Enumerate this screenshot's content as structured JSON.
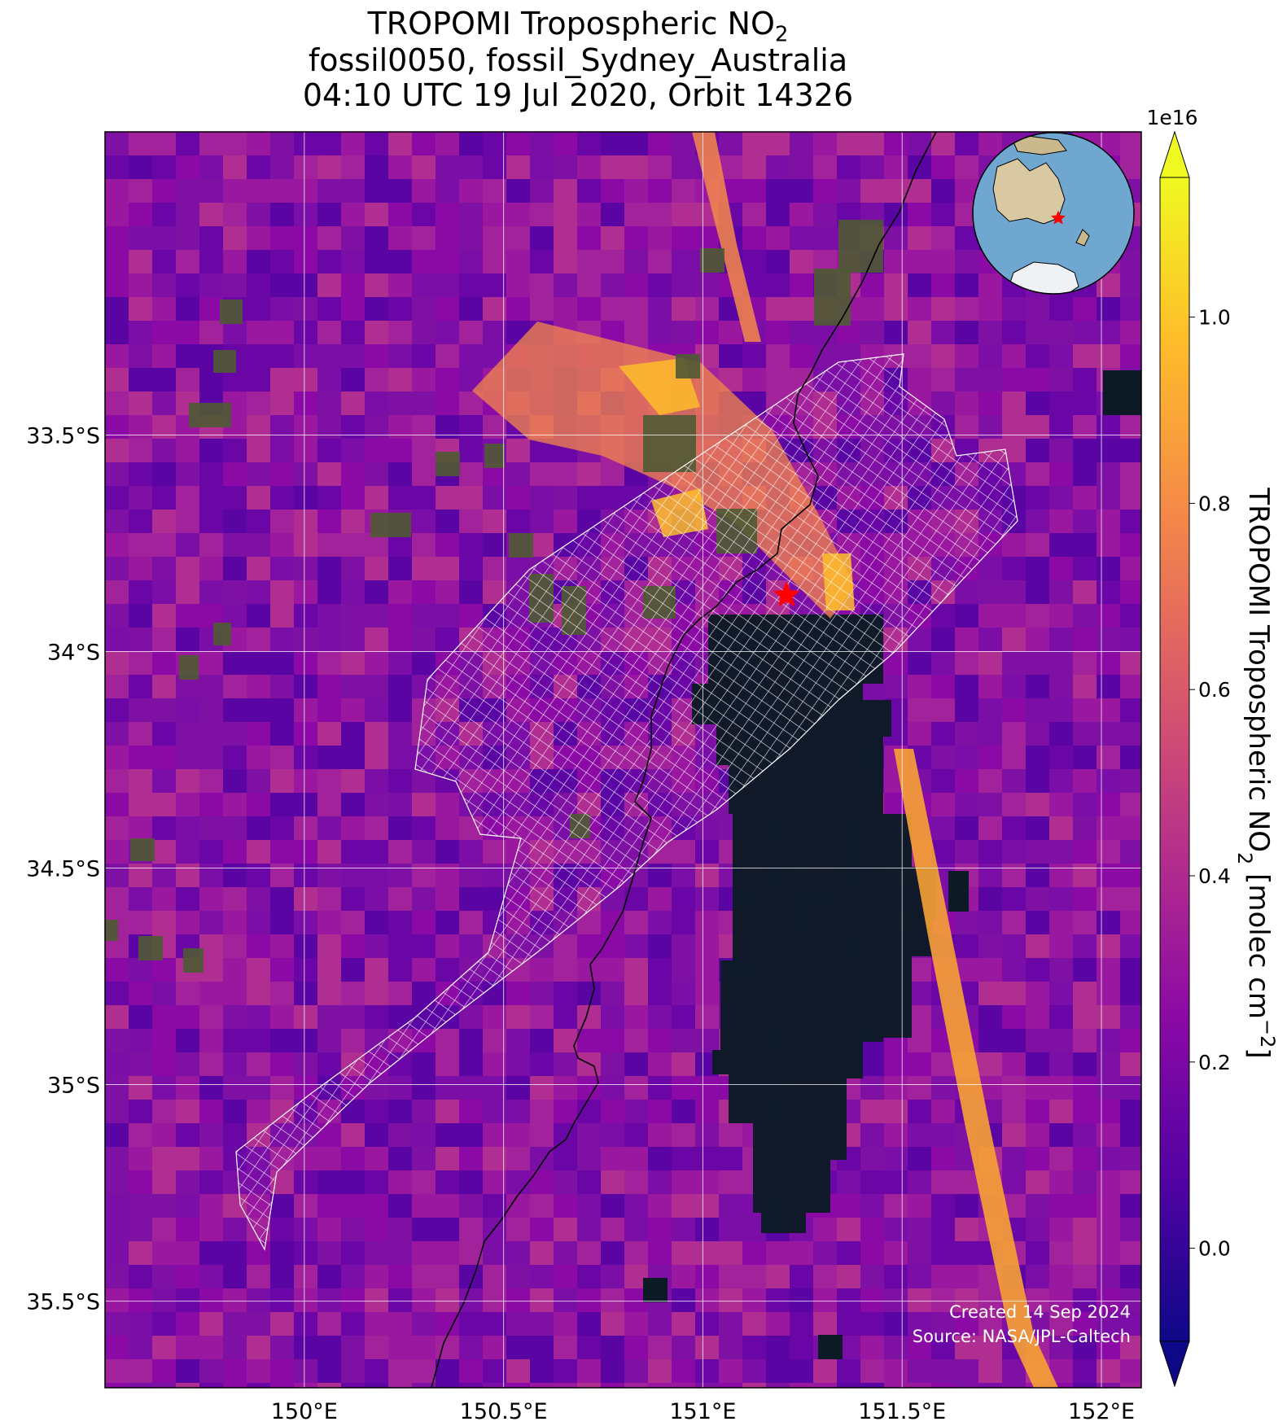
{
  "title": {
    "line1": "TROPOMI Tropospheric NO",
    "line1_sub": "2",
    "line2": "fossil0050, fossil_Sydney_Australia",
    "line3": "04:10 UTC 19 Jul 2020, Orbit 14326"
  },
  "map": {
    "lon_range": [
      149.5,
      152.1
    ],
    "lat_range": [
      -35.7,
      -32.8
    ],
    "lat_ticks": [
      {
        "value": -33.5,
        "label": "33.5°S"
      },
      {
        "value": -34.0,
        "label": "34°S"
      },
      {
        "value": -34.5,
        "label": "34.5°S"
      },
      {
        "value": -35.0,
        "label": "35°S"
      },
      {
        "value": -35.5,
        "label": "35.5°S"
      }
    ],
    "lon_ticks": [
      {
        "value": 150.0,
        "label": "150°E"
      },
      {
        "value": 150.5,
        "label": "150.5°E"
      },
      {
        "value": 151.0,
        "label": "151°E"
      },
      {
        "value": 151.5,
        "label": "151.5°E"
      },
      {
        "value": 152.0,
        "label": "152°E"
      }
    ],
    "target_marker": {
      "lon": 151.21,
      "lat": -33.87,
      "color": "#ff0000",
      "icon": "star-icon"
    },
    "fill_color_nodata": "#0b1a24",
    "coastline_color": "#000000"
  },
  "colorbar": {
    "multiplier": "1e16",
    "label": "TROPOMI Tropospheric NO",
    "label_sub": "2",
    "label_units_pre": " [molec cm",
    "label_units_sup": "−2",
    "label_units_post": "]",
    "vmin": -0.1,
    "vmax": 1.15,
    "ticks": [
      {
        "value": 0.0,
        "label": "0.0"
      },
      {
        "value": 0.2,
        "label": "0.2"
      },
      {
        "value": 0.4,
        "label": "0.4"
      },
      {
        "value": 0.6,
        "label": "0.6"
      },
      {
        "value": 0.8,
        "label": "0.8"
      },
      {
        "value": 1.0,
        "label": "1.0"
      }
    ],
    "colormap": "plasma",
    "colors": [
      "#0d0887",
      "#5302a3",
      "#8b0aa5",
      "#b83289",
      "#db5c68",
      "#f48849",
      "#febd2a",
      "#f0f921"
    ]
  },
  "credits": {
    "created": "Created 14 Sep 2024",
    "source": "Source: NASA/JPL-Caltech"
  }
}
